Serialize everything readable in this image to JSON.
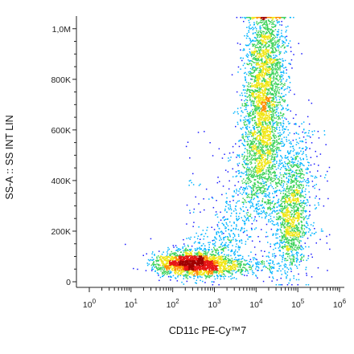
{
  "chart_data": {
    "type": "scatter",
    "style": "density-colored flow cytometry dot plot",
    "xlabel": "CD11c PE-Cy™7",
    "ylabel": "SS-A :: SS INT LIN",
    "x_scale": "log",
    "x_range": [
      1,
      1000000
    ],
    "x_ticks": [
      {
        "value": 1,
        "base": "10",
        "exp": "0"
      },
      {
        "value": 10,
        "base": "10",
        "exp": "1"
      },
      {
        "value": 100,
        "base": "10",
        "exp": "2"
      },
      {
        "value": 1000,
        "base": "10",
        "exp": "3"
      },
      {
        "value": 10000,
        "base": "10",
        "exp": "4"
      },
      {
        "value": 100000,
        "base": "10",
        "exp": "5"
      },
      {
        "value": 1000000,
        "base": "10",
        "exp": "6"
      }
    ],
    "y_scale": "linear",
    "y_range": [
      0,
      1050000
    ],
    "y_ticks": [
      {
        "value": 0,
        "label": "0"
      },
      {
        "value": 200000,
        "label": "200K"
      },
      {
        "value": 400000,
        "label": "400K"
      },
      {
        "value": 600000,
        "label": "600K"
      },
      {
        "value": 800000,
        "label": "800K"
      },
      {
        "value": 1000000,
        "label": "1,0M"
      }
    ],
    "grid": false,
    "populations": [
      {
        "x_center": 300,
        "y_center": 75000,
        "density": "highest"
      },
      {
        "x_center": 15000,
        "y_center": 720000,
        "density": "high"
      },
      {
        "x_center": 70000,
        "y_center": 310000,
        "density": "medium"
      }
    ],
    "density_colors": [
      "#1a1aff",
      "#00b4ff",
      "#3cd25a",
      "#f0e614",
      "#ff8c00",
      "#e61414",
      "#a00000"
    ]
  }
}
